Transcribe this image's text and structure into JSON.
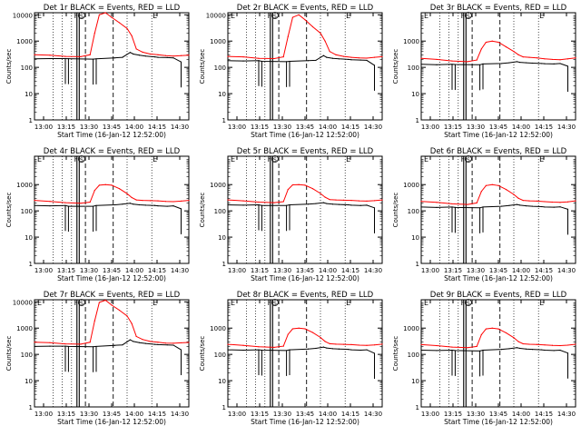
{
  "shared": {
    "xlabel": "Start Time (16-Jan-12 12:52:00)",
    "ylabel": "Counts/sec",
    "x_tick_labels": [
      "13:00",
      "13:15",
      "13:30",
      "13:45",
      "14:00",
      "14:15",
      "14:30"
    ],
    "y_tick_labels": [
      "1",
      "10",
      "100",
      "1000",
      "10000"
    ],
    "x_range_min": [
      0,
      100
    ],
    "y_log_range": [
      1,
      12000
    ],
    "markers": {
      "F": "F",
      "S": "S",
      "E": "E"
    }
  },
  "colors": {
    "events": "#000000",
    "lld": "#ff0000"
  },
  "chart_data": [
    {
      "type": "line",
      "title": "Det 1r BLACK = Events, RED = LLD",
      "flare": "big",
      "y_tick_labels": [
        "1",
        "10",
        "100",
        "1000",
        "10000"
      ],
      "series": [
        {
          "name": "BLACK = Events",
          "x": [
            0,
            10,
            20,
            22,
            38,
            40,
            52,
            57,
            62,
            64,
            68,
            72,
            78,
            80,
            86,
            90,
            95
          ],
          "y": [
            210,
            215,
            215,
            213,
            205,
            210,
            230,
            240,
            370,
            320,
            290,
            270,
            250,
            240,
            235,
            230,
            160
          ]
        },
        {
          "name": "RED = LLD",
          "x": [
            0,
            10,
            20,
            30,
            36,
            39,
            42,
            46,
            50,
            55,
            60,
            63,
            66,
            70,
            75,
            80,
            85,
            90,
            95,
            100
          ],
          "y": [
            300,
            290,
            260,
            255,
            300,
            2000,
            10000,
            12000,
            8000,
            5000,
            3000,
            1600,
            500,
            380,
            320,
            300,
            280,
            270,
            280,
            290
          ]
        }
      ]
    },
    {
      "type": "line",
      "title": "Det 2r BLACK = Events, RED = LLD",
      "flare": "big",
      "y_tick_labels": [
        "1",
        "10",
        "100",
        "1000",
        "10000"
      ],
      "series": [
        {
          "name": "BLACK = Events",
          "x": [
            0,
            10,
            20,
            22,
            38,
            40,
            52,
            57,
            62,
            64,
            68,
            72,
            78,
            80,
            86,
            90,
            95
          ],
          "y": [
            180,
            175,
            180,
            170,
            165,
            170,
            180,
            185,
            280,
            240,
            220,
            210,
            200,
            195,
            190,
            185,
            120
          ]
        },
        {
          "name": "RED = LLD",
          "x": [
            0,
            10,
            20,
            30,
            36,
            39,
            42,
            46,
            50,
            55,
            60,
            63,
            66,
            70,
            75,
            80,
            85,
            90,
            95,
            100
          ],
          "y": [
            260,
            250,
            220,
            215,
            250,
            1500,
            8000,
            10000,
            6500,
            3500,
            2000,
            1000,
            400,
            300,
            260,
            240,
            230,
            225,
            240,
            255
          ]
        }
      ]
    },
    {
      "type": "line",
      "title": "Det 3r BLACK = Events, RED = LLD",
      "flare": "small",
      "y_tick_labels": [
        "1",
        "10",
        "100",
        "1000"
      ],
      "series": [
        {
          "name": "BLACK = Events",
          "x": [
            0,
            10,
            20,
            22,
            38,
            40,
            52,
            57,
            62,
            64,
            68,
            72,
            78,
            80,
            86,
            90,
            95
          ],
          "y": [
            130,
            125,
            130,
            128,
            125,
            135,
            140,
            150,
            165,
            155,
            150,
            145,
            140,
            138,
            135,
            140,
            110
          ]
        },
        {
          "name": "RED = LLD",
          "x": [
            0,
            10,
            20,
            30,
            36,
            39,
            42,
            46,
            50,
            55,
            60,
            63,
            66,
            70,
            75,
            80,
            85,
            90,
            95,
            100
          ],
          "y": [
            220,
            200,
            175,
            165,
            190,
            500,
            900,
            1000,
            900,
            600,
            400,
            300,
            250,
            240,
            230,
            210,
            200,
            195,
            210,
            230
          ]
        }
      ]
    },
    {
      "type": "line",
      "title": "Det 4r BLACK = Events, RED = LLD",
      "flare": "small",
      "y_tick_labels": [
        "1",
        "10",
        "100",
        "1000"
      ],
      "series": [
        {
          "name": "BLACK = Events",
          "x": [
            0,
            10,
            20,
            22,
            38,
            40,
            52,
            57,
            62,
            64,
            68,
            72,
            78,
            80,
            86,
            90,
            95
          ],
          "y": [
            160,
            155,
            160,
            150,
            150,
            160,
            170,
            180,
            195,
            180,
            170,
            165,
            160,
            155,
            150,
            155,
            120
          ]
        },
        {
          "name": "RED = LLD",
          "x": [
            0,
            10,
            20,
            30,
            36,
            39,
            42,
            46,
            50,
            55,
            60,
            63,
            66,
            70,
            75,
            80,
            85,
            90,
            95,
            100
          ],
          "y": [
            250,
            230,
            205,
            195,
            215,
            600,
            950,
            1000,
            950,
            700,
            450,
            320,
            260,
            250,
            245,
            240,
            230,
            225,
            235,
            250
          ]
        }
      ]
    },
    {
      "type": "line",
      "title": "Det 5r BLACK = Events, RED = LLD",
      "flare": "small",
      "y_tick_labels": [
        "1",
        "10",
        "100",
        "1000"
      ],
      "series": [
        {
          "name": "BLACK = Events",
          "x": [
            0,
            10,
            20,
            22,
            38,
            40,
            52,
            57,
            62,
            64,
            68,
            72,
            78,
            80,
            86,
            90,
            95
          ],
          "y": [
            170,
            165,
            170,
            160,
            160,
            170,
            180,
            190,
            205,
            190,
            180,
            175,
            170,
            165,
            160,
            165,
            130
          ]
        },
        {
          "name": "RED = LLD",
          "x": [
            0,
            10,
            20,
            30,
            36,
            39,
            42,
            46,
            50,
            55,
            60,
            63,
            66,
            70,
            75,
            80,
            85,
            90,
            95,
            100
          ],
          "y": [
            260,
            240,
            215,
            205,
            225,
            650,
            980,
            1000,
            950,
            700,
            460,
            330,
            270,
            260,
            255,
            250,
            240,
            235,
            245,
            260
          ]
        }
      ]
    },
    {
      "type": "line",
      "title": "Det 6r BLACK = Events, RED = LLD",
      "flare": "small",
      "y_tick_labels": [
        "1",
        "10",
        "100",
        "1000"
      ],
      "series": [
        {
          "name": "BLACK = Events",
          "x": [
            0,
            10,
            20,
            22,
            38,
            40,
            52,
            57,
            62,
            64,
            68,
            72,
            78,
            80,
            86,
            90,
            95
          ],
          "y": [
            140,
            135,
            140,
            135,
            130,
            140,
            150,
            160,
            175,
            165,
            155,
            150,
            145,
            140,
            138,
            142,
            115
          ]
        },
        {
          "name": "RED = LLD",
          "x": [
            0,
            10,
            20,
            30,
            36,
            39,
            42,
            46,
            50,
            55,
            60,
            63,
            66,
            70,
            75,
            80,
            85,
            90,
            95,
            100
          ],
          "y": [
            230,
            210,
            185,
            175,
            200,
            550,
            920,
            1000,
            920,
            650,
            420,
            300,
            250,
            240,
            235,
            225,
            215,
            210,
            220,
            240
          ]
        }
      ]
    },
    {
      "type": "line",
      "title": "Det 7r BLACK = Events, RED = LLD",
      "flare": "big",
      "y_tick_labels": [
        "1",
        "10",
        "100",
        "1000",
        "10000"
      ],
      "series": [
        {
          "name": "BLACK = Events",
          "x": [
            0,
            10,
            20,
            22,
            38,
            40,
            52,
            57,
            62,
            64,
            68,
            72,
            78,
            80,
            86,
            90,
            95
          ],
          "y": [
            200,
            205,
            205,
            200,
            195,
            200,
            220,
            230,
            360,
            310,
            280,
            260,
            240,
            235,
            230,
            225,
            150
          ]
        },
        {
          "name": "RED = LLD",
          "x": [
            0,
            10,
            20,
            30,
            36,
            39,
            42,
            46,
            50,
            55,
            60,
            63,
            66,
            70,
            75,
            80,
            85,
            90,
            95,
            100
          ],
          "y": [
            290,
            280,
            250,
            245,
            290,
            1900,
            9500,
            11500,
            7500,
            4800,
            2900,
            1500,
            480,
            370,
            310,
            290,
            270,
            265,
            275,
            285
          ]
        }
      ]
    },
    {
      "type": "line",
      "title": "Det 8r BLACK = Events, RED = LLD",
      "flare": "small",
      "y_tick_labels": [
        "1",
        "10",
        "100",
        "1000"
      ],
      "series": [
        {
          "name": "BLACK = Events",
          "x": [
            0,
            10,
            20,
            22,
            38,
            40,
            52,
            57,
            62,
            64,
            68,
            72,
            78,
            80,
            86,
            90,
            95
          ],
          "y": [
            150,
            145,
            150,
            145,
            140,
            150,
            160,
            170,
            190,
            175,
            165,
            160,
            155,
            150,
            145,
            150,
            110
          ]
        },
        {
          "name": "RED = LLD",
          "x": [
            0,
            10,
            20,
            30,
            36,
            39,
            42,
            46,
            50,
            55,
            60,
            63,
            66,
            70,
            75,
            80,
            85,
            90,
            95,
            100
          ],
          "y": [
            240,
            220,
            195,
            185,
            205,
            580,
            940,
            1000,
            940,
            680,
            440,
            310,
            255,
            245,
            240,
            235,
            225,
            220,
            230,
            245
          ]
        }
      ]
    },
    {
      "type": "line",
      "title": "Det 9r BLACK = Events, RED = LLD",
      "flare": "small",
      "y_tick_labels": [
        "1",
        "10",
        "100",
        "1000"
      ],
      "series": [
        {
          "name": "BLACK = Events",
          "x": [
            0,
            10,
            20,
            22,
            38,
            40,
            52,
            57,
            62,
            64,
            68,
            72,
            78,
            80,
            86,
            90,
            95
          ],
          "y": [
            145,
            140,
            145,
            140,
            135,
            145,
            155,
            165,
            180,
            170,
            160,
            155,
            150,
            145,
            140,
            145,
            112
          ]
        },
        {
          "name": "RED = LLD",
          "x": [
            0,
            10,
            20,
            30,
            36,
            39,
            42,
            46,
            50,
            55,
            60,
            63,
            66,
            70,
            75,
            80,
            85,
            90,
            95,
            100
          ],
          "y": [
            235,
            215,
            190,
            180,
            200,
            560,
            930,
            1000,
            930,
            660,
            430,
            305,
            252,
            242,
            238,
            230,
            220,
            215,
            225,
            242
          ]
        }
      ]
    }
  ]
}
